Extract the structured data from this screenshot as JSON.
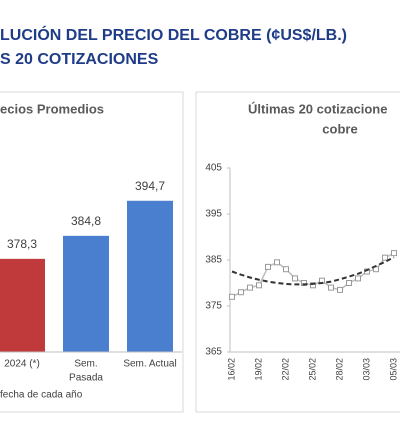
{
  "header": {
    "line1": "LUCIÓN DEL PRECIO DEL COBRE (¢US$/LB.)",
    "line2": "S 20 COTIZACIONES"
  },
  "chart_data": [
    {
      "type": "bar",
      "title": "ecios Promedios",
      "categories": [
        [
          "2024 (*)"
        ],
        [
          "Sem.",
          "Pasada"
        ],
        [
          "Sem. Actual"
        ]
      ],
      "values": [
        378.3,
        384.8,
        394.7
      ],
      "value_labels": [
        "378,3",
        "384,8",
        "394,7"
      ],
      "colors": [
        "#c0393b",
        "#4a7fd0",
        "#4a7fd0"
      ],
      "ylim": [
        352,
        400
      ],
      "note": "fecha de cada año"
    },
    {
      "type": "line",
      "title": [
        "Últimas 20 cotizacione",
        "cobre"
      ],
      "categories": [
        "16/02",
        null,
        null,
        "19/02",
        null,
        null,
        "22/02",
        null,
        null,
        "25/02",
        null,
        null,
        "28/02",
        null,
        null,
        "03/03",
        null,
        null,
        "05/03"
      ],
      "series": [
        {
          "color": "#bdbdbd",
          "marker": true,
          "values": [
            377,
            378,
            379,
            379.5,
            383.5,
            384.5,
            383,
            381,
            380,
            379.5,
            380.5,
            379,
            378.5,
            380,
            381,
            382.5,
            383,
            385.5,
            386.5
          ]
        },
        {
          "color": "#333333",
          "dashed": true,
          "values": [
            382.5,
            381.8,
            381.2,
            380.7,
            380.3,
            380,
            379.8,
            379.7,
            379.7,
            379.8,
            380,
            380.3,
            380.8,
            381.4,
            382,
            382.8,
            383.7,
            384.6,
            385.6
          ]
        }
      ],
      "ylim": [
        365,
        405
      ],
      "yticks": [
        365,
        375,
        385,
        395,
        405
      ]
    }
  ]
}
